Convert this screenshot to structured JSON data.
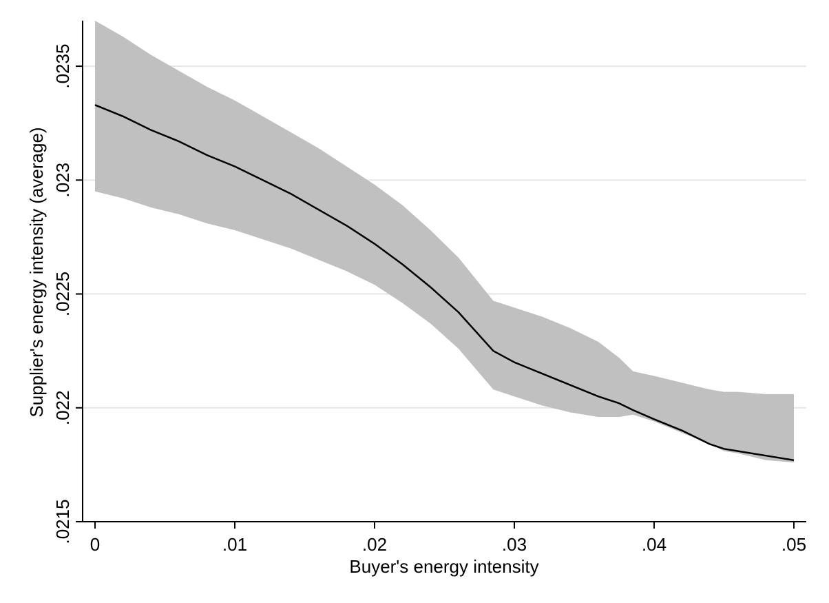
{
  "chart_data": {
    "type": "line",
    "xlabel": "Buyer's energy intensity",
    "ylabel": "Supplier's energy intensity (average)",
    "xlim": [
      0,
      0.05
    ],
    "ylim": [
      0.0215,
      0.0237
    ],
    "x_ticks": [
      {
        "value": 0,
        "label": "0"
      },
      {
        "value": 0.01,
        "label": ".01"
      },
      {
        "value": 0.02,
        "label": ".02"
      },
      {
        "value": 0.03,
        "label": ".03"
      },
      {
        "value": 0.04,
        "label": ".04"
      },
      {
        "value": 0.05,
        "label": ".05"
      }
    ],
    "y_ticks": [
      {
        "value": 0.0215,
        "label": ".0215"
      },
      {
        "value": 0.022,
        "label": ".022"
      },
      {
        "value": 0.0225,
        "label": ".0225"
      },
      {
        "value": 0.023,
        "label": ".023"
      },
      {
        "value": 0.0235,
        "label": ".0235"
      }
    ],
    "grid": "horizontal",
    "line_color": "#000000",
    "band_color": "#c0c0c0",
    "grid_color": "#e6e6e6",
    "x": [
      0,
      0.002,
      0.004,
      0.006,
      0.008,
      0.01,
      0.012,
      0.014,
      0.016,
      0.018,
      0.02,
      0.022,
      0.024,
      0.026,
      0.0285,
      0.03,
      0.032,
      0.034,
      0.036,
      0.0375,
      0.0385,
      0.04,
      0.042,
      0.044,
      0.045,
      0.046,
      0.048,
      0.05
    ],
    "fit": [
      0.02333,
      0.02328,
      0.02322,
      0.02317,
      0.02311,
      0.02306,
      0.023,
      0.02294,
      0.02287,
      0.0228,
      0.02272,
      0.02263,
      0.02253,
      0.02242,
      0.02225,
      0.0222,
      0.02215,
      0.0221,
      0.02205,
      0.02202,
      0.02199,
      0.02195,
      0.0219,
      0.02184,
      0.02182,
      0.02181,
      0.02179,
      0.02177
    ],
    "upper": [
      0.0237,
      0.02363,
      0.02355,
      0.02348,
      0.02341,
      0.02335,
      0.02328,
      0.02321,
      0.02314,
      0.02306,
      0.02298,
      0.02289,
      0.02278,
      0.02266,
      0.02247,
      0.02244,
      0.0224,
      0.02235,
      0.02229,
      0.02222,
      0.02216,
      0.02214,
      0.02211,
      0.02208,
      0.02207,
      0.02207,
      0.02206,
      0.02206
    ],
    "lower": [
      0.02295,
      0.02292,
      0.02288,
      0.02285,
      0.02281,
      0.02278,
      0.02274,
      0.0227,
      0.02265,
      0.0226,
      0.02254,
      0.02246,
      0.02237,
      0.02226,
      0.02208,
      0.02205,
      0.02201,
      0.02198,
      0.02196,
      0.02196,
      0.02197,
      0.02194,
      0.02189,
      0.02184,
      0.02181,
      0.0218,
      0.02177,
      0.02176
    ]
  }
}
